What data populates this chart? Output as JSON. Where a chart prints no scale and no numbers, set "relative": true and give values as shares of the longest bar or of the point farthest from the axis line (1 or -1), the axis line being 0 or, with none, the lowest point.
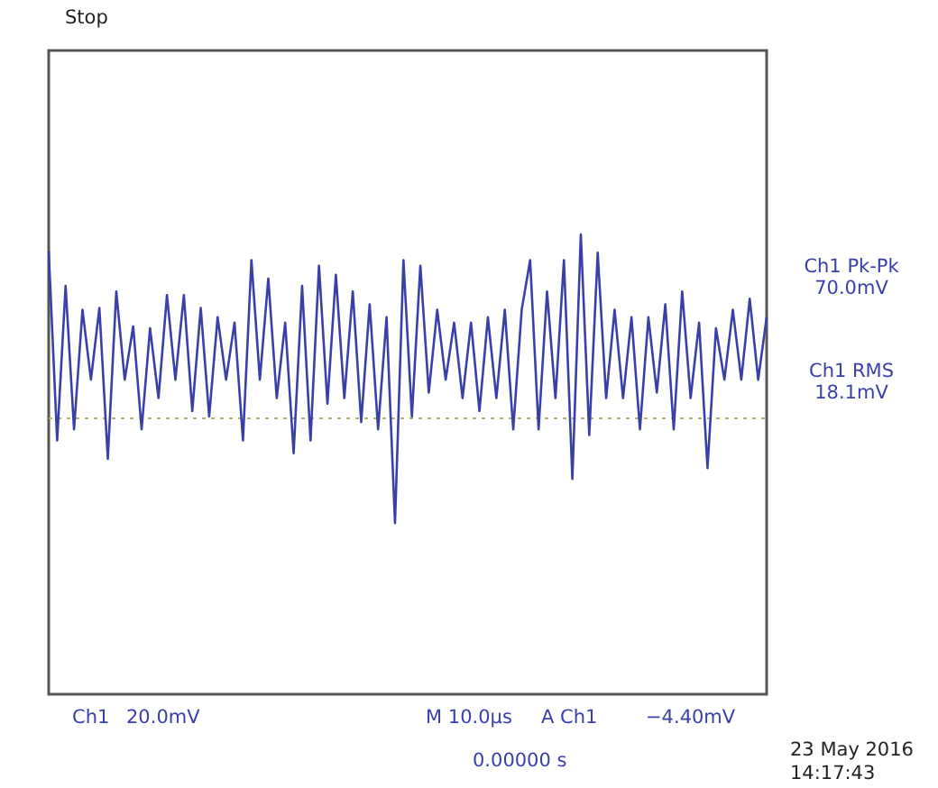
{
  "chart_data": {
    "type": "line",
    "relative": true,
    "marker": "none",
    "line_style": "solid",
    "legend": false,
    "ref_lines": [
      {
        "axis": "y",
        "value": 0,
        "color": "#b8b070",
        "line_style": "dotted"
      }
    ],
    "categories": [
      null,
      null,
      null,
      null,
      null,
      null,
      null,
      null,
      null,
      null,
      null,
      null,
      null,
      null,
      null,
      null,
      null,
      null,
      null,
      null,
      null,
      null,
      null,
      null,
      null,
      null,
      null,
      null,
      null,
      null,
      null,
      null,
      null,
      null,
      null,
      null,
      null,
      null,
      null,
      null,
      null,
      null,
      null,
      null,
      null,
      null,
      null,
      null,
      null,
      null,
      null,
      null,
      null,
      null,
      null,
      null,
      null,
      null,
      null,
      null,
      null,
      null,
      null,
      null,
      null,
      null,
      null,
      null,
      null,
      null,
      null,
      null,
      null,
      null,
      null,
      null,
      null,
      null,
      null,
      null,
      null,
      null,
      null,
      null,
      null,
      null
    ],
    "series": [
      {
        "color": "#3b40a8",
        "values": [
          0.91,
          -0.12,
          0.72,
          -0.06,
          0.59,
          0.21,
          0.6,
          -0.22,
          0.69,
          0.21,
          0.5,
          -0.06,
          0.49,
          0.11,
          0.67,
          0.21,
          0.67,
          0.04,
          0.6,
          0.01,
          0.55,
          0.21,
          0.52,
          -0.12,
          0.86,
          0.21,
          0.76,
          0.11,
          0.52,
          -0.19,
          0.72,
          -0.12,
          0.83,
          0.08,
          0.78,
          0.11,
          0.69,
          -0.02,
          0.62,
          -0.06,
          0.55,
          -0.57,
          0.86,
          0.01,
          0.83,
          0.14,
          0.59,
          0.21,
          0.52,
          0.11,
          0.52,
          0.04,
          0.55,
          0.11,
          0.59,
          -0.06,
          0.59,
          0.86,
          -0.06,
          0.69,
          0.11,
          0.86,
          -0.33,
          1,
          -0.09,
          0.9,
          0.11,
          0.59,
          0.11,
          0.55,
          -0.06,
          0.55,
          0.14,
          0.62,
          -0.06,
          0.69,
          0.11,
          0.52,
          -0.27,
          0.49,
          0.21,
          0.59,
          0.21,
          0.65,
          0.21,
          0.55
        ]
      }
    ],
    "annotations": [
      "Stop",
      "Ch1 Pk-Pk",
      "70.0mV",
      "Ch1 RMS",
      "18.1mV",
      "Ch1",
      "20.0mV",
      "M 10.0µs",
      "A Ch1",
      "−4.40mV",
      "0.00000 s",
      "23 May 2016",
      "14:17:43"
    ]
  }
}
